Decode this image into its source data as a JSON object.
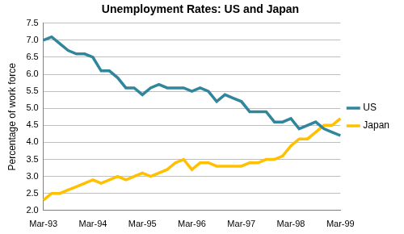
{
  "chart_data": {
    "type": "line",
    "title": "Unemployment Rates: US and Japan",
    "y_label": "Percentage of work force",
    "categories": [
      "Mar-93",
      null,
      null,
      null,
      null,
      null,
      "Mar-94",
      null,
      null,
      null,
      null,
      null,
      "Mar-95",
      null,
      null,
      null,
      null,
      null,
      "Mar-96",
      null,
      null,
      null,
      null,
      null,
      "Mar-97",
      null,
      null,
      null,
      null,
      null,
      "Mar-98",
      null,
      null,
      null,
      null,
      null,
      "Mar-99"
    ],
    "series": [
      {
        "name": "US",
        "color": "#31859c",
        "values": [
          7.0,
          7.1,
          6.9,
          6.7,
          6.6,
          6.6,
          6.5,
          6.1,
          6.1,
          5.9,
          5.6,
          5.6,
          5.4,
          5.6,
          5.7,
          5.6,
          5.6,
          5.6,
          5.5,
          5.6,
          5.5,
          5.2,
          5.4,
          5.3,
          5.2,
          4.9,
          4.9,
          4.9,
          4.6,
          4.6,
          4.7,
          4.4,
          4.5,
          4.6,
          4.4,
          4.3,
          4.2
        ]
      },
      {
        "name": "Japan",
        "color": "#ffc000",
        "values": [
          2.3,
          2.5,
          2.5,
          2.6,
          2.7,
          2.8,
          2.9,
          2.8,
          2.9,
          3.0,
          2.9,
          3.0,
          3.1,
          3.0,
          3.1,
          3.2,
          3.4,
          3.5,
          3.2,
          3.4,
          3.4,
          3.3,
          3.3,
          3.3,
          3.3,
          3.4,
          3.4,
          3.5,
          3.5,
          3.6,
          3.9,
          4.1,
          4.1,
          4.3,
          4.5,
          4.5,
          4.7
        ]
      }
    ],
    "ylim": [
      2,
      7.5
    ],
    "yticks": [
      {
        "value": 2,
        "label": "2.0"
      },
      {
        "value": 2.5,
        "label": "2.5"
      },
      {
        "value": 3,
        "label": "3.0"
      },
      {
        "value": 3.5,
        "label": "3.5"
      },
      {
        "value": 4,
        "label": "4.0"
      },
      {
        "value": 4.5,
        "label": "4.5"
      },
      {
        "value": 5,
        "label": "5.0"
      },
      {
        "value": 5.5,
        "label": "5.5"
      },
      {
        "value": 6,
        "label": "6.0"
      },
      {
        "value": 6.5,
        "label": "6.5"
      },
      {
        "value": 7,
        "label": "7.0"
      },
      {
        "value": 7.5,
        "label": "7.5"
      }
    ],
    "grid": true,
    "legend": "right"
  }
}
